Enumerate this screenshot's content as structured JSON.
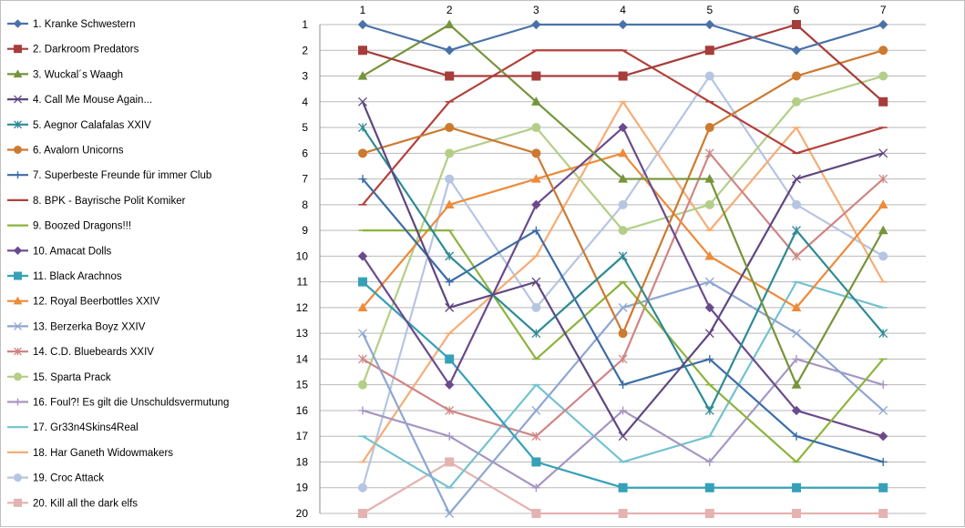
{
  "chart_data": {
    "type": "line",
    "title": "",
    "xlabel": "",
    "ylabel": "",
    "x": [
      1,
      2,
      3,
      4,
      5,
      6,
      7
    ],
    "ylim": [
      1,
      20
    ],
    "y_reversed": true,
    "x_axis_position": "top",
    "grid": "horizontal",
    "legend_position": "left",
    "series": [
      {
        "name": "1. Kranke Schwestern",
        "color": "#4a72a9",
        "marker": "diamond",
        "values": [
          1,
          2,
          1,
          1,
          1,
          2,
          1
        ]
      },
      {
        "name": "2. Darkroom Predators",
        "color": "#a63d3a",
        "marker": "square",
        "values": [
          2,
          3,
          3,
          3,
          2,
          1,
          4
        ]
      },
      {
        "name": "3. Wuckal´s Waagh",
        "color": "#76943b",
        "marker": "triangle",
        "values": [
          3,
          1,
          4,
          7,
          7,
          15,
          9
        ]
      },
      {
        "name": "4. Call Me Mouse Again...",
        "color": "#5e4780",
        "marker": "x",
        "values": [
          4,
          12,
          11,
          17,
          13,
          7,
          6
        ]
      },
      {
        "name": "5. Aegnor Calafalas XXIV",
        "color": "#2e8a94",
        "marker": "star",
        "values": [
          5,
          10,
          13,
          10,
          16,
          9,
          13
        ]
      },
      {
        "name": "6. Avalorn Unicorns",
        "color": "#cc7a30",
        "marker": "circle",
        "values": [
          6,
          5,
          6,
          13,
          5,
          3,
          2
        ]
      },
      {
        "name": "7. Superbeste Freunde für immer Club",
        "color": "#3b6ca6",
        "marker": "plus",
        "values": [
          7,
          11,
          9,
          15,
          14,
          17,
          18
        ]
      },
      {
        "name": "8. BPK - Bayrische Polit Komiker",
        "color": "#b3403c",
        "marker": "dash",
        "values": [
          8,
          4,
          2,
          2,
          4,
          6,
          5
        ]
      },
      {
        "name": "9. Boozed Dragons!!!",
        "color": "#8db33e",
        "marker": "dash",
        "values": [
          9,
          9,
          14,
          11,
          15,
          18,
          14
        ]
      },
      {
        "name": "10. Amacat Dolls",
        "color": "#6a4a8c",
        "marker": "diamond",
        "values": [
          10,
          15,
          8,
          5,
          12,
          16,
          17
        ]
      },
      {
        "name": "11. Black Arachnos",
        "color": "#36a0b8",
        "marker": "square",
        "values": [
          11,
          14,
          18,
          19,
          19,
          19,
          19
        ]
      },
      {
        "name": "12. Royal Beerbottles XXIV",
        "color": "#ee8a3a",
        "marker": "triangle",
        "values": [
          12,
          8,
          7,
          6,
          10,
          12,
          8
        ]
      },
      {
        "name": "13. Berzerka Boyz XXIV",
        "color": "#8ea6d2",
        "marker": "x",
        "values": [
          13,
          20,
          16,
          12,
          11,
          13,
          16
        ]
      },
      {
        "name": "14. C.D. Bluebeards XXIV",
        "color": "#d08583",
        "marker": "star",
        "values": [
          14,
          16,
          17,
          14,
          6,
          10,
          7
        ]
      },
      {
        "name": "15. Sparta Prack",
        "color": "#b3cf87",
        "marker": "circle",
        "values": [
          15,
          6,
          5,
          9,
          8,
          4,
          3
        ]
      },
      {
        "name": "16. Foul?! Es gilt die Unschuldsvermutung",
        "color": "#a696c2",
        "marker": "plus",
        "values": [
          16,
          17,
          19,
          16,
          18,
          14,
          15
        ]
      },
      {
        "name": "17. Gr33n4Skins4Real",
        "color": "#73c2cf",
        "marker": "dash",
        "values": [
          17,
          19,
          15,
          18,
          17,
          11,
          12
        ]
      },
      {
        "name": "18. Har Ganeth Widowmakers",
        "color": "#f5ad77",
        "marker": "dash",
        "values": [
          18,
          13,
          10,
          4,
          9,
          5,
          11
        ]
      },
      {
        "name": "19. Croc Attack",
        "color": "#b6c5e2",
        "marker": "circle",
        "values": [
          19,
          7,
          12,
          8,
          3,
          8,
          10
        ]
      },
      {
        "name": "20. Kill all the dark elfs",
        "color": "#e4b2b0",
        "marker": "square",
        "values": [
          20,
          18,
          20,
          20,
          20,
          20,
          20
        ]
      }
    ]
  }
}
